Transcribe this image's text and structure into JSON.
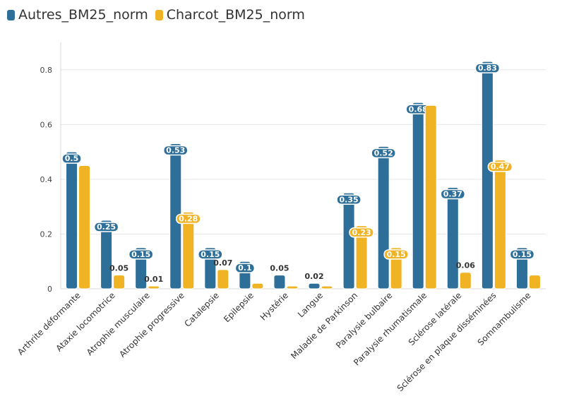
{
  "chart_data": {
    "type": "bar",
    "title": "",
    "xlabel": "",
    "ylabel": "",
    "ylim": [
      0,
      0.9
    ],
    "yticks": [
      0,
      0.2,
      0.4,
      0.6,
      0.8
    ],
    "grid": true,
    "legend_position": "top-left",
    "categories": [
      "Arthrite déformante",
      "Ataxie locomotrice",
      "Atrophie musculaire",
      "Atrophie progressive",
      "Catalepsie",
      "Epilepsie",
      "Hystérie",
      "Langue",
      "Maladie de Parkinson",
      "Paralysie bulbaire",
      "Paralysie rhumatismale",
      "Sclérose latérale",
      "Sclérose en plaque disséminées",
      "Somnambulisme"
    ],
    "series": [
      {
        "name": "Autres_BM25_norm",
        "color": "#2e6f9a",
        "values": [
          0.5,
          0.25,
          0.15,
          0.53,
          0.15,
          0.1,
          0.05,
          0.02,
          0.35,
          0.52,
          0.68,
          0.37,
          0.83,
          0.15
        ],
        "labels": [
          "0.5",
          "0.25",
          "0.15",
          "0.53",
          "0.15",
          "0.1",
          "0.05",
          "0.02",
          "0.35",
          "0.52",
          "0.68",
          "0.37",
          "0.83",
          "0.15"
        ]
      },
      {
        "name": "Charcot_BM25_norm",
        "color": "#f0b323",
        "values": [
          0.45,
          0.05,
          0.01,
          0.28,
          0.07,
          0.02,
          0.01,
          0.01,
          0.23,
          0.15,
          0.67,
          0.06,
          0.47,
          0.05
        ],
        "labels": [
          "",
          "0.05",
          "0.01",
          "0.28",
          "0.07",
          "",
          "",
          "",
          "0.23",
          "0.15",
          "",
          "0.06",
          "0.47",
          ""
        ]
      }
    ]
  }
}
